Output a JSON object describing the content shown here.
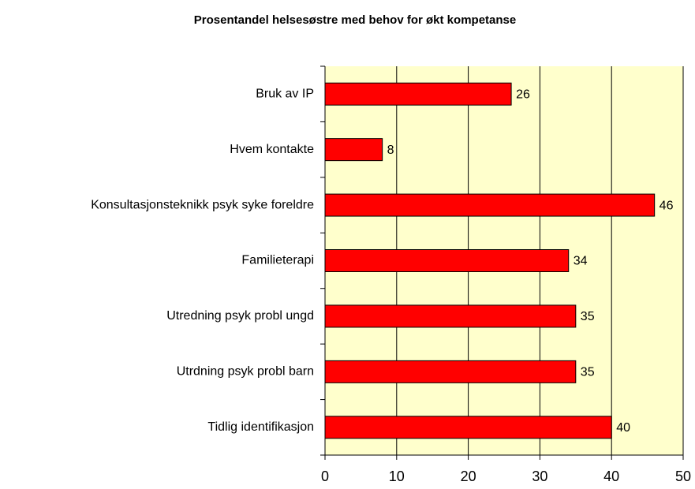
{
  "chart_data": {
    "type": "barh",
    "title": "Prosentandel helsesøstre med behov for økt kompetanse",
    "categories": [
      "Bruk av IP",
      "Hvem kontakte",
      "Konsultasjonsteknikk psyk syke foreldre",
      "Familieterapi",
      "Utredning psyk probl ungd",
      "Utrdning psyk probl barn",
      "Tidlig identifikasjon"
    ],
    "values": [
      26,
      8,
      46,
      34,
      35,
      35,
      40
    ],
    "color": "#ff0000",
    "xlim": [
      0,
      50
    ],
    "xticks": [
      0,
      10,
      20,
      30,
      40,
      50
    ],
    "grid": true,
    "plot_background": "#ffffcc"
  }
}
